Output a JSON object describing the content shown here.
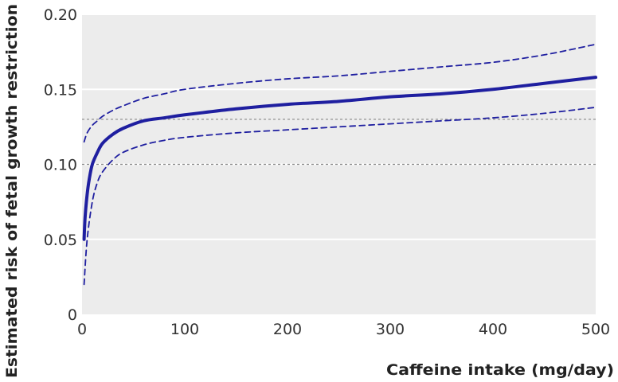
{
  "chart_data": {
    "type": "line",
    "title": "",
    "xlabel": "Caffeine intake (mg/day)",
    "ylabel": "Estimated risk of fetal growth restriction",
    "xlim": [
      0,
      500
    ],
    "ylim": [
      0,
      0.2
    ],
    "x_ticks": [
      0,
      100,
      200,
      300,
      400,
      500
    ],
    "y_ticks": [
      0,
      0.05,
      0.1,
      0.15,
      0.2
    ],
    "x_tick_labels": [
      "0",
      "100",
      "200",
      "300",
      "400",
      "500"
    ],
    "y_tick_labels": [
      "0",
      "0.05",
      "0.10",
      "0.15",
      "0.20"
    ],
    "grid": true,
    "reference_lines": [
      0.1,
      0.13
    ],
    "series": [
      {
        "role": "estimate",
        "style": "solid",
        "color": "#1f1fa0",
        "x": [
          2,
          3,
          5,
          7,
          10,
          15,
          20,
          30,
          40,
          60,
          80,
          100,
          150,
          200,
          250,
          300,
          350,
          400,
          450,
          500
        ],
        "y": [
          0.05,
          0.065,
          0.08,
          0.09,
          0.1,
          0.108,
          0.114,
          0.12,
          0.124,
          0.129,
          0.131,
          0.133,
          0.137,
          0.14,
          0.142,
          0.145,
          0.147,
          0.15,
          0.154,
          0.158
        ]
      },
      {
        "role": "upper-ci",
        "style": "dashed",
        "color": "#1f1fa0",
        "x": [
          2,
          5,
          10,
          15,
          20,
          30,
          40,
          60,
          80,
          100,
          150,
          200,
          250,
          300,
          350,
          400,
          450,
          500
        ],
        "y": [
          0.115,
          0.121,
          0.126,
          0.129,
          0.132,
          0.136,
          0.139,
          0.144,
          0.147,
          0.15,
          0.154,
          0.157,
          0.159,
          0.162,
          0.165,
          0.168,
          0.173,
          0.18
        ]
      },
      {
        "role": "lower-ci",
        "style": "dashed",
        "color": "#1f1fa0",
        "x": [
          2,
          5,
          10,
          15,
          20,
          30,
          40,
          60,
          80,
          100,
          150,
          200,
          250,
          300,
          350,
          400,
          450,
          500
        ],
        "y": [
          0.02,
          0.05,
          0.075,
          0.088,
          0.095,
          0.103,
          0.108,
          0.113,
          0.116,
          0.118,
          0.121,
          0.123,
          0.125,
          0.127,
          0.129,
          0.131,
          0.134,
          0.138
        ]
      }
    ],
    "colors": {
      "plot_background": "#ececec",
      "gridline": "#ffffff",
      "reference_line": "#888888",
      "series": "#1f1fa0"
    }
  }
}
